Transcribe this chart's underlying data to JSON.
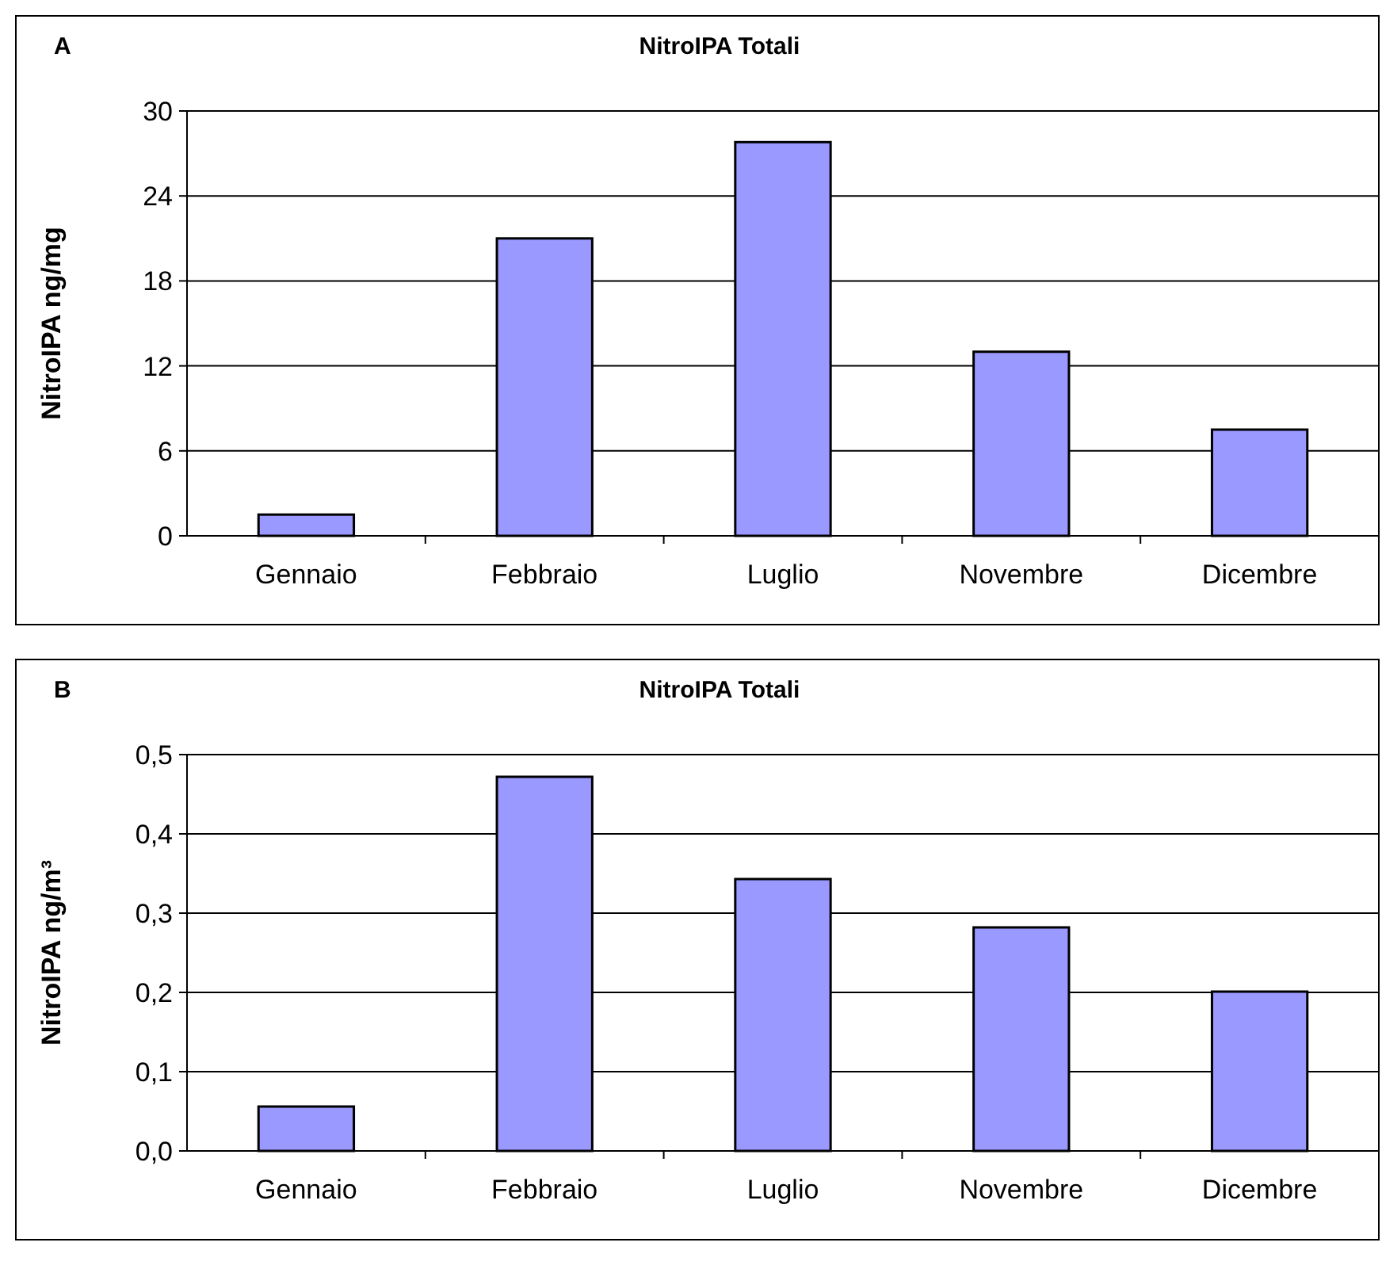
{
  "chart_data": [
    {
      "type": "bar",
      "title": "NitroIPA Totali",
      "ylabel": "NitroIPA ng/mg",
      "annotations": [
        "A"
      ],
      "categories": [
        "Gennaio",
        "Febbraio",
        "Luglio",
        "Novembre",
        "Dicembre"
      ],
      "values": [
        1.5,
        21.0,
        27.8,
        13.0,
        7.5
      ],
      "color": "#9999ff",
      "ylim": [
        0,
        30
      ],
      "yticks": [
        0,
        6,
        12,
        18,
        24,
        30
      ],
      "grid": "y"
    },
    {
      "type": "bar",
      "title": "NitroIPA Totali",
      "ylabel": "NitroIPA ng/m³",
      "annotations": [
        "B"
      ],
      "categories": [
        "Gennaio",
        "Febbraio",
        "Luglio",
        "Novembre",
        "Dicembre"
      ],
      "values": [
        0.056,
        0.472,
        0.343,
        0.282,
        0.201
      ],
      "color": "#9999ff",
      "ylim": [
        0,
        0.5
      ],
      "yticks": [
        {
          "value": 0,
          "label": "0,0"
        },
        {
          "value": 0.1,
          "label": "0,1"
        },
        {
          "value": 0.2,
          "label": "0,2"
        },
        {
          "value": 0.3,
          "label": "0,3"
        },
        {
          "value": 0.4,
          "label": "0,4"
        },
        {
          "value": 0.5,
          "label": "0,5"
        }
      ],
      "grid": "y"
    }
  ]
}
